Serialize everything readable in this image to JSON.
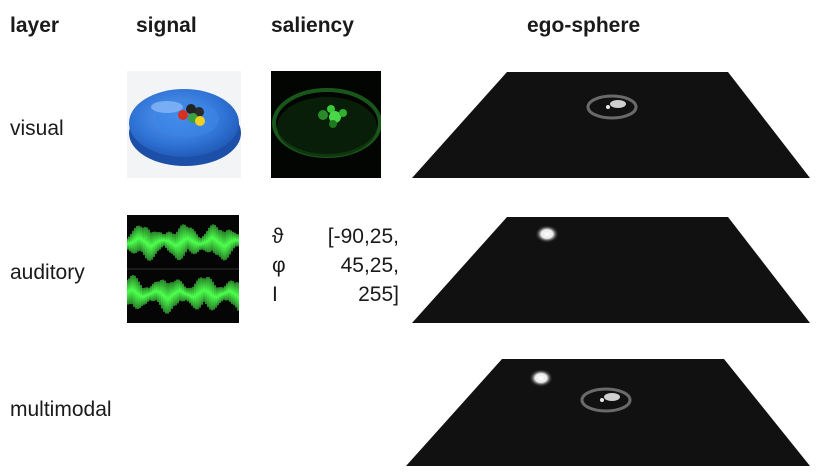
{
  "headers": {
    "layer": "layer",
    "signal": "signal",
    "saliency": "saliency",
    "ego_sphere": "ego-sphere"
  },
  "layers": {
    "visual": "visual",
    "auditory": "auditory",
    "multimodal": "multimodal"
  },
  "auditory_saliency": {
    "symbols": [
      "ϑ",
      "φ",
      "I"
    ],
    "values": [
      "[-90,25,",
      "45,25,",
      "255]"
    ]
  },
  "colors": {
    "plate": "#2f73d6",
    "saliency_green": "#38c838",
    "waveform": "#4dff4d",
    "ego_plane": "#111111"
  },
  "icons": {
    "visual_signal": "plate-with-balls-photo",
    "visual_saliency": "green-saliency-map",
    "auditory_signal": "stereo-waveform",
    "ego_sphere": "perspective-plane"
  }
}
